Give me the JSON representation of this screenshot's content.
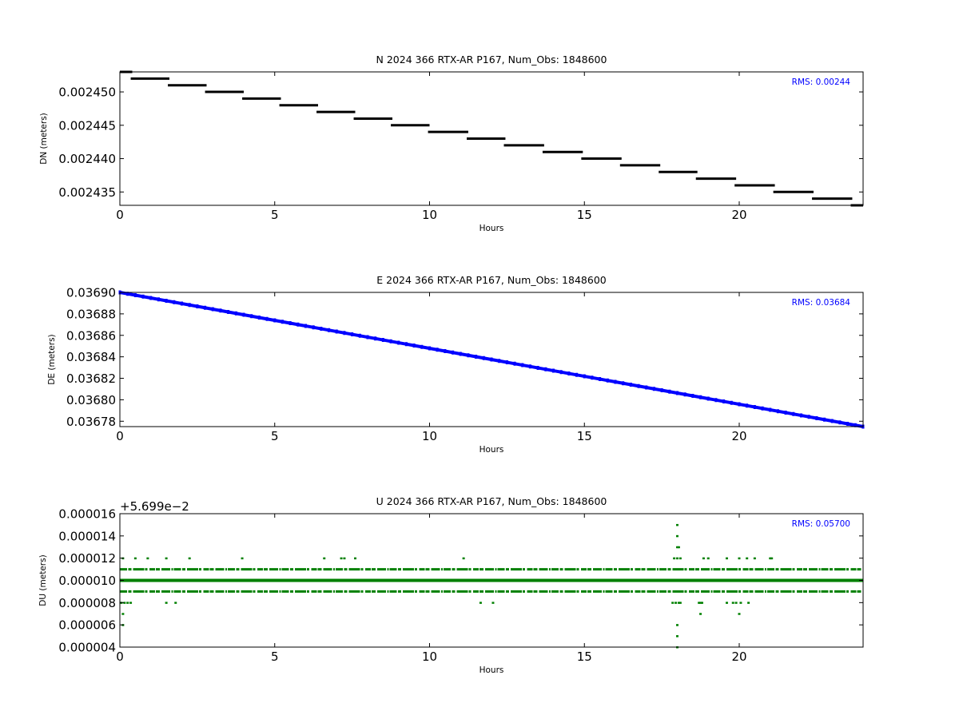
{
  "figure": {
    "background": "#ffffff"
  },
  "chart_data": [
    {
      "type": "scatter",
      "title": "N 2024 366 RTX-AR  P167, Num_Obs: 1848600",
      "xlabel": "Hours",
      "ylabel": "DN (meters)",
      "rms_label": "RMS:  0.00244",
      "offset_label": "",
      "color": "#000000",
      "rms_color": "#0000ff",
      "xlim": [
        0,
        24
      ],
      "ylim": [
        0.002433,
        0.002453
      ],
      "xticks": [
        0,
        5,
        10,
        15,
        20
      ],
      "xtick_labels": [
        "0",
        "5",
        "10",
        "15",
        "20"
      ],
      "yticks": [
        0.002435,
        0.00244,
        0.002445,
        0.00245
      ],
      "ytick_labels": [
        "0.002435",
        "0.002440",
        "0.002445",
        "0.002450"
      ],
      "series": [
        {
          "segments": [
            {
              "x": [
                0.0,
                0.4
              ],
              "y": 0.002453
            },
            {
              "x": [
                0.35,
                1.6
              ],
              "y": 0.002452
            },
            {
              "x": [
                1.55,
                2.8
              ],
              "y": 0.002451
            },
            {
              "x": [
                2.75,
                4.0
              ],
              "y": 0.00245
            },
            {
              "x": [
                3.95,
                5.2
              ],
              "y": 0.002449
            },
            {
              "x": [
                5.15,
                6.4
              ],
              "y": 0.002448
            },
            {
              "x": [
                6.35,
                7.6
              ],
              "y": 0.002447
            },
            {
              "x": [
                7.55,
                8.8
              ],
              "y": 0.002446
            },
            {
              "x": [
                8.75,
                10.0
              ],
              "y": 0.002445
            },
            {
              "x": [
                9.95,
                11.25
              ],
              "y": 0.002444
            },
            {
              "x": [
                11.2,
                12.45
              ],
              "y": 0.002443
            },
            {
              "x": [
                12.4,
                13.7
              ],
              "y": 0.002442
            },
            {
              "x": [
                13.65,
                14.95
              ],
              "y": 0.002441
            },
            {
              "x": [
                14.9,
                16.2
              ],
              "y": 0.00244
            },
            {
              "x": [
                16.15,
                17.45
              ],
              "y": 0.002439
            },
            {
              "x": [
                17.4,
                18.65
              ],
              "y": 0.002438
            },
            {
              "x": [
                18.6,
                19.9
              ],
              "y": 0.002437
            },
            {
              "x": [
                19.85,
                21.15
              ],
              "y": 0.002436
            },
            {
              "x": [
                21.1,
                22.4
              ],
              "y": 0.002435
            },
            {
              "x": [
                22.35,
                23.65
              ],
              "y": 0.002434
            },
            {
              "x": [
                23.6,
                24.0
              ],
              "y": 0.002433
            }
          ]
        }
      ]
    },
    {
      "type": "scatter",
      "title": "E 2024 366 RTX-AR  P167, Num_Obs: 1848600",
      "xlabel": "Hours",
      "ylabel": "DE (meters)",
      "rms_label": "RMS:  0.03684",
      "offset_label": "",
      "color": "#0000ff",
      "rms_color": "#0000ff",
      "xlim": [
        0,
        24
      ],
      "ylim": [
        0.036775,
        0.0369
      ],
      "xticks": [
        0,
        5,
        10,
        15,
        20
      ],
      "xtick_labels": [
        "0",
        "5",
        "10",
        "15",
        "20"
      ],
      "yticks": [
        0.03678,
        0.0368,
        0.03682,
        0.03684,
        0.03686,
        0.03688,
        0.0369
      ],
      "ytick_labels": [
        "0.03678",
        "0.03680",
        "0.03682",
        "0.03684",
        "0.03686",
        "0.03688",
        "0.03690"
      ],
      "series": [
        {
          "trend": {
            "x": [
              0,
              24
            ],
            "y": [
              0.0369,
              0.036775
            ]
          }
        }
      ]
    },
    {
      "type": "scatter",
      "title": "U 2024 366 RTX-AR  P167, Num_Obs: 1848600",
      "xlabel": "Hours",
      "ylabel": "DU (meters)",
      "rms_label": "RMS:  0.05700",
      "offset_label": "+5.699e−2",
      "color": "#008000",
      "rms_color": "#0000ff",
      "xlim": [
        0,
        24
      ],
      "ylim": [
        4e-06,
        1.6e-05
      ],
      "xticks": [
        0,
        5,
        10,
        15,
        20
      ],
      "xtick_labels": [
        "0",
        "5",
        "10",
        "15",
        "20"
      ],
      "yticks": [
        4e-06,
        6e-06,
        8e-06,
        1e-05,
        1.2e-05,
        1.4e-05,
        1.6e-05
      ],
      "ytick_labels": [
        "0.000004",
        "0.000006",
        "0.000008",
        "0.000010",
        "0.000012",
        "0.000014",
        "0.000016"
      ],
      "series": [
        {
          "bands": [
            {
              "y": 1e-05,
              "density": "solid"
            },
            {
              "y": 1.1e-05,
              "density": "dense"
            },
            {
              "y": 9e-06,
              "density": "dense"
            }
          ],
          "points": [
            [
              0.1,
              1.2e-05
            ],
            [
              0.5,
              1.2e-05
            ],
            [
              0.9,
              1.2e-05
            ],
            [
              1.5,
              1.2e-05
            ],
            [
              2.25,
              1.2e-05
            ],
            [
              3.95,
              1.2e-05
            ],
            [
              6.6,
              1.2e-05
            ],
            [
              7.15,
              1.2e-05
            ],
            [
              7.25,
              1.2e-05
            ],
            [
              7.6,
              1.2e-05
            ],
            [
              11.1,
              1.2e-05
            ],
            [
              17.9,
              1.2e-05
            ],
            [
              18.0,
              1.2e-05
            ],
            [
              18.1,
              1.2e-05
            ],
            [
              18.85,
              1.2e-05
            ],
            [
              19.0,
              1.2e-05
            ],
            [
              19.6,
              1.2e-05
            ],
            [
              20.0,
              1.2e-05
            ],
            [
              20.25,
              1.2e-05
            ],
            [
              20.5,
              1.2e-05
            ],
            [
              21.0,
              1.2e-05
            ],
            [
              21.05,
              1.2e-05
            ],
            [
              0.05,
              8e-06
            ],
            [
              0.15,
              8e-06
            ],
            [
              0.25,
              8e-06
            ],
            [
              0.35,
              8e-06
            ],
            [
              1.5,
              8e-06
            ],
            [
              1.8,
              8e-06
            ],
            [
              11.65,
              8e-06
            ],
            [
              12.05,
              8e-06
            ],
            [
              17.85,
              8e-06
            ],
            [
              17.95,
              8e-06
            ],
            [
              18.05,
              8e-06
            ],
            [
              18.1,
              8e-06
            ],
            [
              18.7,
              8e-06
            ],
            [
              18.75,
              8e-06
            ],
            [
              18.8,
              8e-06
            ],
            [
              19.6,
              8e-06
            ],
            [
              19.8,
              8e-06
            ],
            [
              19.9,
              8e-06
            ],
            [
              20.05,
              8e-06
            ],
            [
              20.3,
              8e-06
            ],
            [
              0.1,
              7e-06
            ],
            [
              18.75,
              7e-06
            ],
            [
              20.0,
              7e-06
            ],
            [
              0.1,
              6e-06
            ],
            [
              18.0,
              6e-06
            ],
            [
              18.0,
              5e-06
            ],
            [
              18.0,
              4e-06
            ],
            [
              18.0,
              1.3e-05
            ],
            [
              18.05,
              1.3e-05
            ],
            [
              18.0,
              1.4e-05
            ],
            [
              18.0,
              1.5e-05
            ]
          ]
        }
      ]
    }
  ]
}
